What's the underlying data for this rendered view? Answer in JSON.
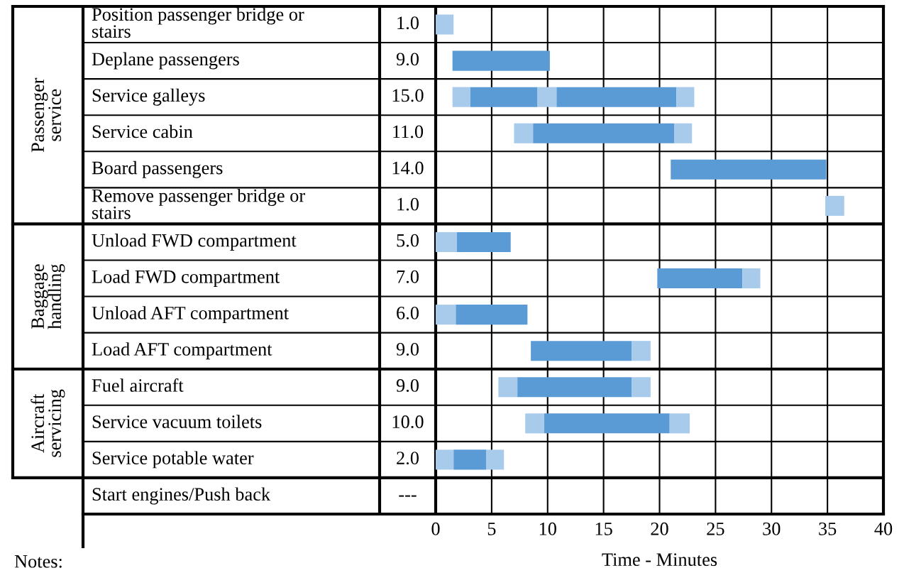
{
  "chart_data": {
    "type": "bar",
    "orientation": "horizontal",
    "categories": [
      "Position passenger bridge or stairs",
      "Deplane passengers",
      "Service galleys",
      "Service cabin",
      "Board passengers",
      "Remove passenger bridge or stairs",
      "Unload FWD compartment",
      "Load FWD compartment",
      "Unload AFT compartment",
      "Load AFT compartment",
      "Fuel aircraft",
      "Service vacuum toilets",
      "Service potable water",
      "Start engines/Push back"
    ],
    "y2_categories": [
      "1.0",
      "9.0",
      "15.0",
      "11.0",
      "14.0",
      "1.0",
      "5.0",
      "7.0",
      "6.0",
      "9.0",
      "9.0",
      "10.0",
      "2.0",
      "---"
    ],
    "series": [
      {
        "color": "#a8cbec",
        "base": [
          0,
          null,
          1.5,
          7.0,
          null,
          34.8,
          0,
          null,
          0,
          null,
          5.6,
          8.0,
          0,
          null
        ],
        "values": [
          1.6,
          null,
          1.6,
          1.7,
          null,
          1.7,
          1.9,
          null,
          1.8,
          null,
          1.7,
          1.7,
          1.6,
          null
        ]
      },
      {
        "color": "#5b9bd5",
        "base": [
          null,
          1.5,
          3.1,
          8.7,
          21.0,
          null,
          1.9,
          19.8,
          1.8,
          8.5,
          7.3,
          9.7,
          1.6,
          null
        ],
        "values": [
          null,
          8.7,
          6.0,
          12.6,
          13.9,
          null,
          4.8,
          7.6,
          6.4,
          9.0,
          10.2,
          11.2,
          2.9,
          null
        ]
      },
      {
        "color": "#a8cbec",
        "base": [
          null,
          null,
          9.1,
          21.3,
          null,
          null,
          null,
          27.4,
          null,
          17.5,
          17.5,
          20.9,
          4.5,
          null
        ],
        "values": [
          null,
          null,
          1.7,
          1.6,
          null,
          null,
          null,
          1.6,
          null,
          1.7,
          1.7,
          1.8,
          1.6,
          null
        ]
      },
      {
        "color": "#5b9bd5",
        "base": [
          null,
          null,
          10.8,
          null,
          null,
          null,
          null,
          null,
          null,
          null,
          null,
          null,
          null,
          null
        ],
        "values": [
          null,
          null,
          10.7,
          null,
          null,
          null,
          null,
          null,
          null,
          null,
          null,
          null,
          null,
          null
        ]
      },
      {
        "color": "#a8cbec",
        "base": [
          null,
          null,
          21.5,
          null,
          null,
          null,
          null,
          null,
          null,
          null,
          null,
          null,
          null,
          null
        ],
        "values": [
          null,
          null,
          1.6,
          null,
          null,
          null,
          null,
          null,
          null,
          null,
          null,
          null,
          null,
          null
        ]
      }
    ],
    "xlim": [
      0,
      40
    ],
    "xticks": [
      0,
      5,
      10,
      15,
      20,
      25,
      30,
      35,
      40
    ],
    "grid": "x",
    "xlabel": "Time - Minutes",
    "annotations": [
      "Passenger service",
      "Baggage handling",
      "Aircraft servicing",
      "Notes:"
    ]
  }
}
